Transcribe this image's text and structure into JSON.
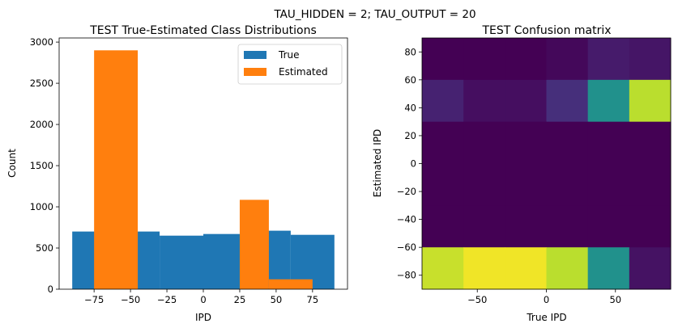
{
  "figure": {
    "suptitle": "TAU_HIDDEN = 2; TAU_OUTPUT = 20"
  },
  "chart_data": [
    {
      "type": "bar",
      "title": "TEST True-Estimated Class Distributions",
      "xlabel": "IPD",
      "ylabel": "Count",
      "xlim": [
        -99,
        99
      ],
      "ylim": [
        0,
        3050
      ],
      "xticks": [
        -75,
        -50,
        -25,
        0,
        25,
        50,
        75
      ],
      "xtick_labels": [
        "−75",
        "−50",
        "−25",
        "0",
        "25",
        "50",
        "75"
      ],
      "yticks": [
        0,
        500,
        1000,
        1500,
        2000,
        2500,
        3000
      ],
      "ytick_labels": [
        "0",
        "500",
        "1000",
        "1500",
        "2000",
        "2500",
        "3000"
      ],
      "legend": {
        "position": "upper right"
      },
      "bin_edges": [
        -90,
        -75,
        -60,
        -45,
        -30,
        -15,
        0,
        15,
        30,
        45,
        60,
        75,
        90
      ],
      "series": [
        {
          "name": "True",
          "color": "#1f77b4",
          "bins": [
            {
              "x0": -90,
              "x1": -60,
              "value": 700
            },
            {
              "x0": -60,
              "x1": -30,
              "value": 700
            },
            {
              "x0": -30,
              "x1": 0,
              "value": 650
            },
            {
              "x0": 0,
              "x1": 30,
              "value": 670
            },
            {
              "x0": 30,
              "x1": 60,
              "value": 710
            },
            {
              "x0": 60,
              "x1": 90,
              "value": 660
            }
          ]
        },
        {
          "name": "Estimated",
          "color": "#ff7f0e",
          "bins": [
            {
              "x0": -75,
              "x1": -45,
              "value": 2900
            },
            {
              "x0": 25,
              "x1": 45,
              "value": 1085
            },
            {
              "x0": 45,
              "x1": 75,
              "value": 120
            }
          ]
        }
      ]
    },
    {
      "type": "heatmap",
      "title": "TEST Confusion matrix",
      "xlabel": "True IPD",
      "ylabel": "Estimated IPD",
      "xlim": [
        -90,
        90
      ],
      "ylim": [
        -90,
        90
      ],
      "xticks": [
        -50,
        0,
        50
      ],
      "xtick_labels": [
        "−50",
        "0",
        "50"
      ],
      "yticks": [
        -80,
        -60,
        -40,
        -20,
        0,
        20,
        40,
        60,
        80
      ],
      "ytick_labels": [
        "−80",
        "−60",
        "−40",
        "−20",
        "0",
        "20",
        "40",
        "60",
        "80"
      ],
      "x_edges": [
        -90,
        -60,
        -30,
        0,
        30,
        60,
        90
      ],
      "y_edges": [
        90,
        60,
        30,
        0,
        -30,
        -60,
        -90
      ],
      "colormap": "viridis",
      "value_range": [
        0,
        1
      ],
      "cells": [
        [
          0.0,
          0.0,
          0.0,
          0.02,
          0.08,
          0.06
        ],
        [
          0.1,
          0.04,
          0.04,
          0.14,
          0.5,
          0.9
        ],
        [
          0.0,
          0.0,
          0.0,
          0.0,
          0.0,
          0.0
        ],
        [
          0.0,
          0.0,
          0.0,
          0.0,
          0.0,
          0.0
        ],
        [
          0.0,
          0.0,
          0.0,
          0.0,
          0.0,
          0.0
        ],
        [
          0.92,
          0.98,
          0.98,
          0.9,
          0.5,
          0.05
        ]
      ]
    }
  ]
}
